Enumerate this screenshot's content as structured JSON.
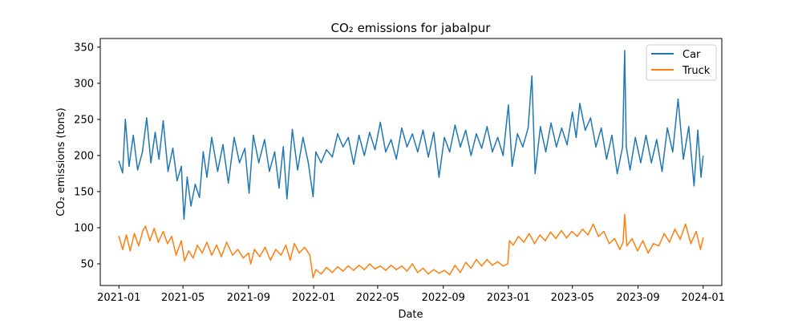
{
  "chart_data": {
    "type": "line",
    "title": "CO₂ emissions for jabalpur",
    "xlabel": "Date",
    "ylabel": "CO₂ emissions (tons)",
    "xlim": [
      "2020-11-27",
      "2024-02-05"
    ],
    "ylim": [
      20,
      362
    ],
    "x_ticks": [
      "2021-01",
      "2021-05",
      "2021-09",
      "2022-01",
      "2022-05",
      "2022-09",
      "2023-01",
      "2023-05",
      "2023-09",
      "2024-01"
    ],
    "y_ticks": [
      50,
      100,
      150,
      200,
      250,
      300,
      350
    ],
    "grid": false,
    "legend_position": "top-right",
    "series": [
      {
        "name": "Car",
        "color": "#1f77b4",
        "points": [
          [
            "2021-01-01",
            192
          ],
          [
            "2021-01-08",
            176
          ],
          [
            "2021-01-13",
            250
          ],
          [
            "2021-01-20",
            185
          ],
          [
            "2021-01-28",
            228
          ],
          [
            "2021-02-05",
            180
          ],
          [
            "2021-02-14",
            205
          ],
          [
            "2021-02-22",
            252
          ],
          [
            "2021-03-02",
            190
          ],
          [
            "2021-03-10",
            232
          ],
          [
            "2021-03-17",
            195
          ],
          [
            "2021-03-25",
            248
          ],
          [
            "2021-04-03",
            178
          ],
          [
            "2021-04-12",
            210
          ],
          [
            "2021-04-20",
            165
          ],
          [
            "2021-04-28",
            185
          ],
          [
            "2021-05-03",
            112
          ],
          [
            "2021-05-09",
            170
          ],
          [
            "2021-05-16",
            130
          ],
          [
            "2021-05-24",
            160
          ],
          [
            "2021-06-01",
            142
          ],
          [
            "2021-06-08",
            205
          ],
          [
            "2021-06-15",
            170
          ],
          [
            "2021-06-24",
            225
          ],
          [
            "2021-07-05",
            178
          ],
          [
            "2021-07-15",
            215
          ],
          [
            "2021-07-25",
            162
          ],
          [
            "2021-08-05",
            225
          ],
          [
            "2021-08-15",
            190
          ],
          [
            "2021-08-25",
            210
          ],
          [
            "2021-09-02",
            148
          ],
          [
            "2021-09-10",
            228
          ],
          [
            "2021-09-20",
            190
          ],
          [
            "2021-10-01",
            222
          ],
          [
            "2021-10-10",
            178
          ],
          [
            "2021-10-20",
            205
          ],
          [
            "2021-10-28",
            155
          ],
          [
            "2021-11-05",
            212
          ],
          [
            "2021-11-12",
            140
          ],
          [
            "2021-11-22",
            236
          ],
          [
            "2021-12-02",
            180
          ],
          [
            "2021-12-12",
            225
          ],
          [
            "2021-12-22",
            190
          ],
          [
            "2021-12-31",
            143
          ],
          [
            "2022-01-05",
            205
          ],
          [
            "2022-01-15",
            190
          ],
          [
            "2022-01-25",
            208
          ],
          [
            "2022-02-05",
            198
          ],
          [
            "2022-02-15",
            230
          ],
          [
            "2022-02-25",
            212
          ],
          [
            "2022-03-07",
            225
          ],
          [
            "2022-03-17",
            188
          ],
          [
            "2022-03-27",
            228
          ],
          [
            "2022-04-06",
            200
          ],
          [
            "2022-04-16",
            232
          ],
          [
            "2022-04-26",
            208
          ],
          [
            "2022-05-06",
            246
          ],
          [
            "2022-05-16",
            205
          ],
          [
            "2022-05-26",
            222
          ],
          [
            "2022-06-05",
            195
          ],
          [
            "2022-06-15",
            238
          ],
          [
            "2022-06-25",
            212
          ],
          [
            "2022-07-05",
            230
          ],
          [
            "2022-07-15",
            205
          ],
          [
            "2022-07-25",
            235
          ],
          [
            "2022-08-04",
            198
          ],
          [
            "2022-08-14",
            232
          ],
          [
            "2022-08-24",
            170
          ],
          [
            "2022-09-03",
            225
          ],
          [
            "2022-09-13",
            205
          ],
          [
            "2022-09-23",
            242
          ],
          [
            "2022-10-03",
            212
          ],
          [
            "2022-10-13",
            235
          ],
          [
            "2022-10-23",
            200
          ],
          [
            "2022-11-02",
            230
          ],
          [
            "2022-11-12",
            210
          ],
          [
            "2022-11-22",
            240
          ],
          [
            "2022-12-02",
            205
          ],
          [
            "2022-12-12",
            225
          ],
          [
            "2022-12-22",
            200
          ],
          [
            "2023-01-01",
            270
          ],
          [
            "2023-01-08",
            185
          ],
          [
            "2023-01-18",
            230
          ],
          [
            "2023-01-28",
            212
          ],
          [
            "2023-02-07",
            238
          ],
          [
            "2023-02-14",
            310
          ],
          [
            "2023-02-20",
            175
          ],
          [
            "2023-03-02",
            240
          ],
          [
            "2023-03-12",
            205
          ],
          [
            "2023-03-22",
            245
          ],
          [
            "2023-04-01",
            212
          ],
          [
            "2023-04-11",
            238
          ],
          [
            "2023-04-21",
            215
          ],
          [
            "2023-05-01",
            260
          ],
          [
            "2023-05-08",
            225
          ],
          [
            "2023-05-15",
            272
          ],
          [
            "2023-05-25",
            235
          ],
          [
            "2023-06-04",
            252
          ],
          [
            "2023-06-14",
            212
          ],
          [
            "2023-06-24",
            238
          ],
          [
            "2023-07-04",
            195
          ],
          [
            "2023-07-14",
            228
          ],
          [
            "2023-07-24",
            175
          ],
          [
            "2023-08-03",
            212
          ],
          [
            "2023-08-07",
            345
          ],
          [
            "2023-08-10",
            212
          ],
          [
            "2023-08-17",
            180
          ],
          [
            "2023-08-27",
            225
          ],
          [
            "2023-09-06",
            190
          ],
          [
            "2023-09-16",
            228
          ],
          [
            "2023-09-26",
            190
          ],
          [
            "2023-10-06",
            222
          ],
          [
            "2023-10-16",
            178
          ],
          [
            "2023-10-26",
            238
          ],
          [
            "2023-11-05",
            205
          ],
          [
            "2023-11-15",
            278
          ],
          [
            "2023-11-25",
            195
          ],
          [
            "2023-12-05",
            240
          ],
          [
            "2023-12-15",
            158
          ],
          [
            "2023-12-22",
            235
          ],
          [
            "2023-12-28",
            170
          ],
          [
            "2024-01-01",
            199
          ]
        ]
      },
      {
        "name": "Truck",
        "color": "#ff7f0e",
        "points": [
          [
            "2021-01-01",
            88
          ],
          [
            "2021-01-08",
            70
          ],
          [
            "2021-01-15",
            90
          ],
          [
            "2021-01-22",
            68
          ],
          [
            "2021-01-30",
            92
          ],
          [
            "2021-02-07",
            75
          ],
          [
            "2021-02-15",
            96
          ],
          [
            "2021-02-20",
            102
          ],
          [
            "2021-02-28",
            82
          ],
          [
            "2021-03-08",
            99
          ],
          [
            "2021-03-16",
            80
          ],
          [
            "2021-03-25",
            95
          ],
          [
            "2021-04-02",
            78
          ],
          [
            "2021-04-10",
            88
          ],
          [
            "2021-04-18",
            62
          ],
          [
            "2021-04-28",
            82
          ],
          [
            "2021-05-04",
            54
          ],
          [
            "2021-05-12",
            68
          ],
          [
            "2021-05-20",
            58
          ],
          [
            "2021-05-28",
            76
          ],
          [
            "2021-06-06",
            65
          ],
          [
            "2021-06-15",
            80
          ],
          [
            "2021-06-24",
            62
          ],
          [
            "2021-07-03",
            76
          ],
          [
            "2021-07-12",
            60
          ],
          [
            "2021-07-22",
            80
          ],
          [
            "2021-08-02",
            62
          ],
          [
            "2021-08-12",
            70
          ],
          [
            "2021-08-22",
            58
          ],
          [
            "2021-09-01",
            65
          ],
          [
            "2021-09-05",
            50
          ],
          [
            "2021-09-12",
            70
          ],
          [
            "2021-09-22",
            60
          ],
          [
            "2021-10-02",
            73
          ],
          [
            "2021-10-12",
            55
          ],
          [
            "2021-10-22",
            70
          ],
          [
            "2021-11-01",
            62
          ],
          [
            "2021-11-10",
            76
          ],
          [
            "2021-11-18",
            55
          ],
          [
            "2021-11-26",
            78
          ],
          [
            "2021-12-05",
            65
          ],
          [
            "2021-12-15",
            73
          ],
          [
            "2021-12-25",
            62
          ],
          [
            "2021-12-31",
            31
          ],
          [
            "2022-01-05",
            42
          ],
          [
            "2022-01-15",
            36
          ],
          [
            "2022-01-25",
            45
          ],
          [
            "2022-02-05",
            38
          ],
          [
            "2022-02-15",
            46
          ],
          [
            "2022-02-25",
            40
          ],
          [
            "2022-03-07",
            47
          ],
          [
            "2022-03-17",
            41
          ],
          [
            "2022-03-27",
            48
          ],
          [
            "2022-04-06",
            42
          ],
          [
            "2022-04-16",
            50
          ],
          [
            "2022-04-26",
            43
          ],
          [
            "2022-05-06",
            47
          ],
          [
            "2022-05-16",
            41
          ],
          [
            "2022-05-26",
            48
          ],
          [
            "2022-06-05",
            42
          ],
          [
            "2022-06-15",
            47
          ],
          [
            "2022-06-25",
            40
          ],
          [
            "2022-07-05",
            50
          ],
          [
            "2022-07-15",
            38
          ],
          [
            "2022-07-25",
            44
          ],
          [
            "2022-08-04",
            36
          ],
          [
            "2022-08-14",
            42
          ],
          [
            "2022-08-24",
            37
          ],
          [
            "2022-09-03",
            41
          ],
          [
            "2022-09-13",
            35
          ],
          [
            "2022-09-23",
            48
          ],
          [
            "2022-10-03",
            38
          ],
          [
            "2022-10-13",
            52
          ],
          [
            "2022-10-23",
            44
          ],
          [
            "2022-11-02",
            56
          ],
          [
            "2022-11-12",
            47
          ],
          [
            "2022-11-22",
            56
          ],
          [
            "2022-12-02",
            48
          ],
          [
            "2022-12-12",
            53
          ],
          [
            "2022-12-22",
            47
          ],
          [
            "2022-12-31",
            50
          ],
          [
            "2023-01-03",
            82
          ],
          [
            "2023-01-10",
            76
          ],
          [
            "2023-01-20",
            88
          ],
          [
            "2023-01-30",
            80
          ],
          [
            "2023-02-09",
            92
          ],
          [
            "2023-02-19",
            78
          ],
          [
            "2023-03-01",
            90
          ],
          [
            "2023-03-11",
            82
          ],
          [
            "2023-03-21",
            94
          ],
          [
            "2023-03-31",
            85
          ],
          [
            "2023-04-10",
            96
          ],
          [
            "2023-04-20",
            86
          ],
          [
            "2023-04-30",
            95
          ],
          [
            "2023-05-10",
            88
          ],
          [
            "2023-05-20",
            98
          ],
          [
            "2023-05-30",
            90
          ],
          [
            "2023-06-09",
            105
          ],
          [
            "2023-06-19",
            88
          ],
          [
            "2023-06-29",
            95
          ],
          [
            "2023-07-09",
            78
          ],
          [
            "2023-07-19",
            85
          ],
          [
            "2023-07-29",
            70
          ],
          [
            "2023-08-04",
            80
          ],
          [
            "2023-08-07",
            118
          ],
          [
            "2023-08-11",
            75
          ],
          [
            "2023-08-21",
            85
          ],
          [
            "2023-08-31",
            68
          ],
          [
            "2023-09-10",
            82
          ],
          [
            "2023-09-20",
            65
          ],
          [
            "2023-09-30",
            78
          ],
          [
            "2023-10-10",
            75
          ],
          [
            "2023-10-20",
            92
          ],
          [
            "2023-10-30",
            80
          ],
          [
            "2023-11-09",
            98
          ],
          [
            "2023-11-19",
            84
          ],
          [
            "2023-11-29",
            105
          ],
          [
            "2023-12-09",
            78
          ],
          [
            "2023-12-19",
            95
          ],
          [
            "2023-12-27",
            70
          ],
          [
            "2024-01-01",
            86
          ]
        ]
      }
    ]
  }
}
